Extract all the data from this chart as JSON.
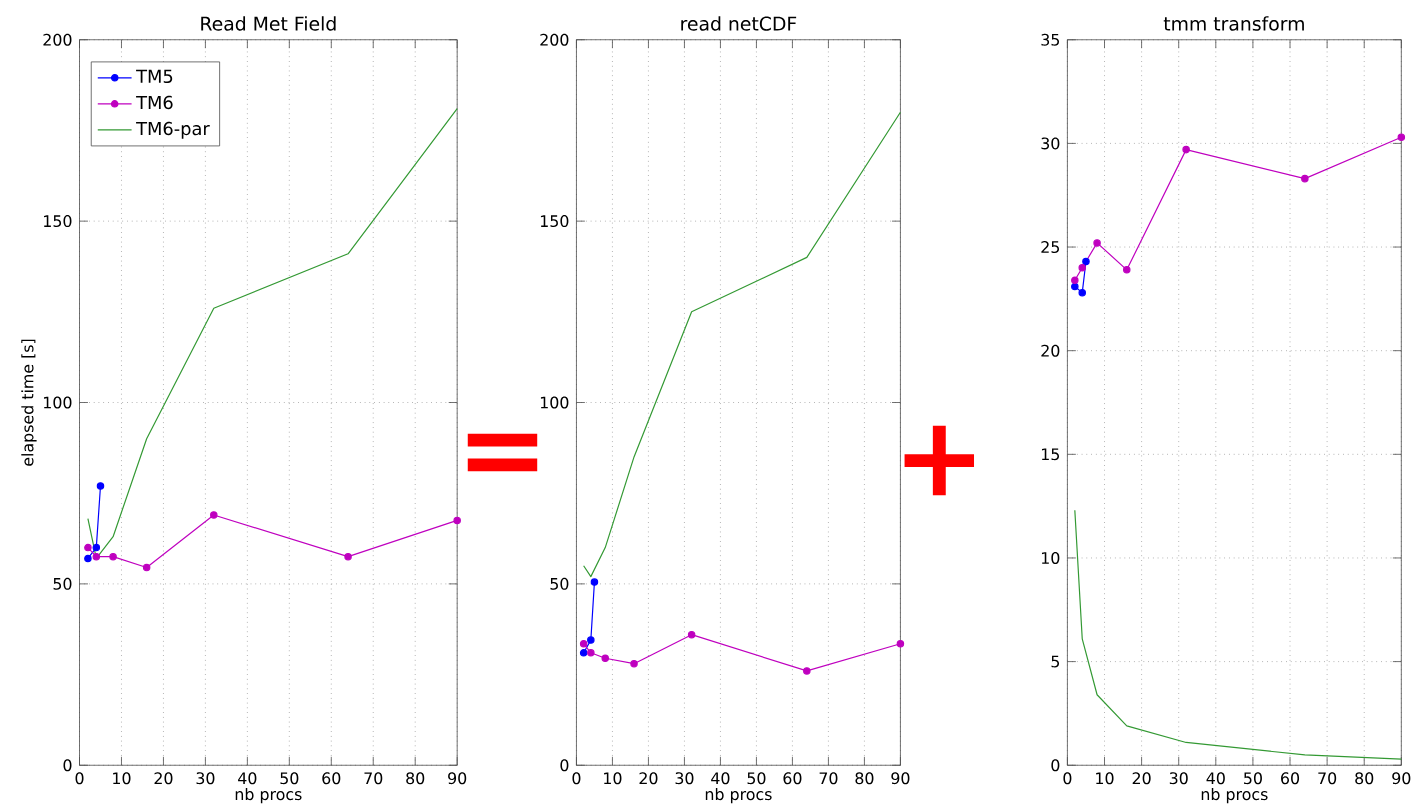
{
  "chart_data": [
    {
      "type": "line",
      "title": "Read Met Field",
      "xlabel": "nb procs",
      "ylabel": "elapsed time [s]",
      "xlim": [
        0,
        90
      ],
      "ylim": [
        0,
        200
      ],
      "xticks": [
        0,
        10,
        20,
        30,
        40,
        50,
        60,
        70,
        80,
        90
      ],
      "yticks": [
        0,
        50,
        100,
        150,
        200
      ],
      "grid": true,
      "legend": "top left",
      "annotations": [
        "="
      ],
      "series": [
        {
          "name": "TM5",
          "color": "#0000ff",
          "marker": "circle",
          "x": [
            2,
            4,
            5
          ],
          "values": [
            57,
            60,
            77
          ]
        },
        {
          "name": "TM6",
          "color": "#bf00bf",
          "marker": "circle",
          "x": [
            2,
            4,
            8,
            16,
            32,
            64,
            90
          ],
          "values": [
            60,
            57.5,
            57.5,
            54.5,
            69,
            57.5,
            67.5
          ]
        },
        {
          "name": "TM6-par",
          "color": "#339933",
          "marker": "none",
          "x": [
            2,
            4,
            8,
            16,
            32,
            64,
            90
          ],
          "values": [
            68,
            57,
            63,
            90,
            126,
            141,
            181
          ]
        }
      ]
    },
    {
      "type": "line",
      "title": "read netCDF",
      "xlabel": "nb procs",
      "xlim": [
        0,
        90
      ],
      "ylim": [
        0,
        200
      ],
      "xticks": [
        0,
        10,
        20,
        30,
        40,
        50,
        60,
        70,
        80,
        90
      ],
      "yticks": [
        0,
        50,
        100,
        150,
        200
      ],
      "grid": true,
      "annotations": [
        "+"
      ],
      "series": [
        {
          "color": "#0000ff",
          "marker": "circle",
          "x": [
            2,
            4,
            5
          ],
          "values": [
            31,
            34.5,
            50.5
          ]
        },
        {
          "color": "#bf00bf",
          "marker": "circle",
          "x": [
            2,
            4,
            8,
            16,
            32,
            64,
            90
          ],
          "values": [
            33.5,
            31,
            29.5,
            28,
            36,
            26,
            33.5
          ]
        },
        {
          "color": "#339933",
          "marker": "none",
          "x": [
            2,
            4,
            8,
            16,
            32,
            64,
            90
          ],
          "values": [
            55,
            52,
            60,
            85,
            125,
            140,
            180
          ]
        }
      ]
    },
    {
      "type": "line",
      "title": "tmm transform",
      "xlabel": "nb procs",
      "xlim": [
        0,
        90
      ],
      "ylim": [
        0,
        35
      ],
      "xticks": [
        0,
        10,
        20,
        30,
        40,
        50,
        60,
        70,
        80,
        90
      ],
      "yticks": [
        0,
        5,
        10,
        15,
        20,
        25,
        30,
        35
      ],
      "grid": true,
      "series": [
        {
          "color": "#0000ff",
          "marker": "circle",
          "x": [
            2,
            4,
            5
          ],
          "values": [
            23.1,
            22.8,
            24.3
          ]
        },
        {
          "color": "#bf00bf",
          "marker": "circle",
          "x": [
            2,
            4,
            8,
            16,
            32,
            64,
            90
          ],
          "values": [
            23.4,
            24,
            25.2,
            23.9,
            29.7,
            28.3,
            30.3
          ]
        },
        {
          "color": "#339933",
          "marker": "none",
          "x": [
            2,
            4,
            8,
            16,
            32,
            64,
            90
          ],
          "values": [
            12.3,
            6.1,
            3.4,
            1.9,
            1.1,
            0.5,
            0.3
          ]
        }
      ]
    }
  ]
}
